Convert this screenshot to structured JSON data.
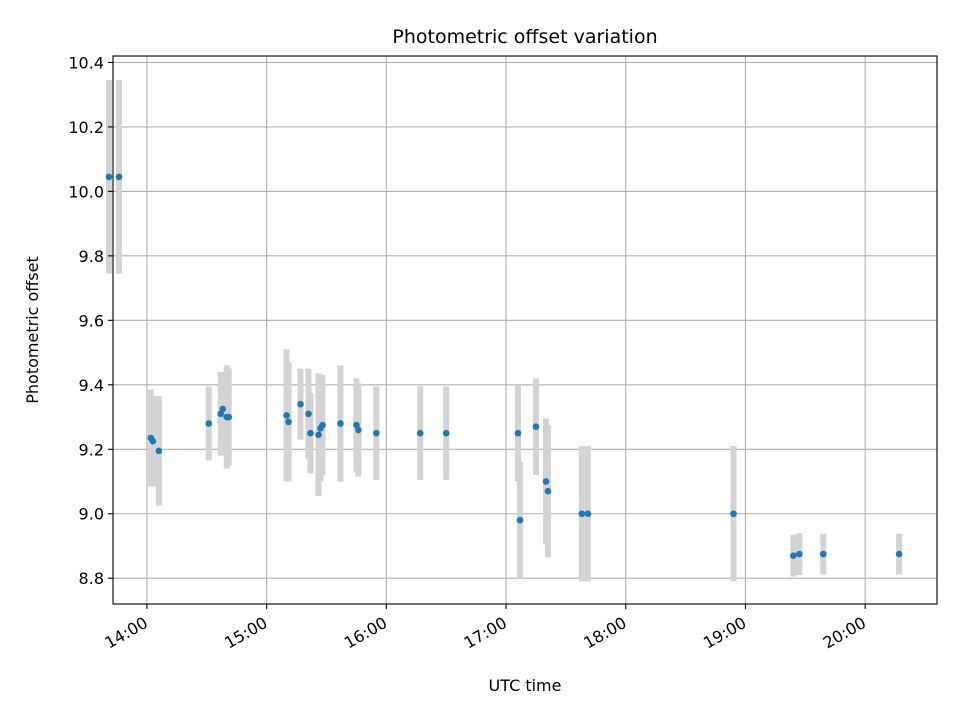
{
  "chart_data": {
    "type": "scatter",
    "title": "Photometric offset variation",
    "xlabel": "UTC time",
    "ylabel": "Photometric offset",
    "x_ticks": [
      "14:00",
      "15:00",
      "16:00",
      "17:00",
      "18:00",
      "19:00",
      "20:00"
    ],
    "y_ticks": [
      "8.8",
      "9.0",
      "9.2",
      "9.4",
      "9.6",
      "9.8",
      "10.0",
      "10.2",
      "10.4"
    ],
    "xlim": [
      "13:43",
      "20:36"
    ],
    "ylim": [
      8.72,
      10.42
    ],
    "grid": true,
    "marker_color": "#1f77b4",
    "errorbar_color": "#d3d3d3",
    "points": [
      {
        "x": "13:41",
        "y": 10.045,
        "err": 0.3
      },
      {
        "x": "13:46",
        "y": 10.045,
        "err": 0.3
      },
      {
        "x": "14:02",
        "y": 9.235,
        "err": 0.15
      },
      {
        "x": "14:03",
        "y": 9.225,
        "err": 0.14
      },
      {
        "x": "14:06",
        "y": 9.195,
        "err": 0.17
      },
      {
        "x": "14:31",
        "y": 9.28,
        "err": 0.115
      },
      {
        "x": "14:37",
        "y": 9.31,
        "err": 0.13
      },
      {
        "x": "14:38",
        "y": 9.325,
        "err": 0.115
      },
      {
        "x": "14:40",
        "y": 9.3,
        "err": 0.16
      },
      {
        "x": "14:41",
        "y": 9.3,
        "err": 0.15
      },
      {
        "x": "15:10",
        "y": 9.305,
        "err": 0.205
      },
      {
        "x": "15:11",
        "y": 9.285,
        "err": 0.185
      },
      {
        "x": "15:17",
        "y": 9.34,
        "err": 0.11
      },
      {
        "x": "15:21",
        "y": 9.31,
        "err": 0.14
      },
      {
        "x": "15:22",
        "y": 9.25,
        "err": 0.125
      },
      {
        "x": "15:26",
        "y": 9.245,
        "err": 0.19
      },
      {
        "x": "15:27",
        "y": 9.265,
        "err": 0.165
      },
      {
        "x": "15:28",
        "y": 9.275,
        "err": 0.155
      },
      {
        "x": "15:37",
        "y": 9.28,
        "err": 0.18
      },
      {
        "x": "15:45",
        "y": 9.275,
        "err": 0.145
      },
      {
        "x": "15:46",
        "y": 9.26,
        "err": 0.145
      },
      {
        "x": "15:55",
        "y": 9.25,
        "err": 0.145
      },
      {
        "x": "16:17",
        "y": 9.25,
        "err": 0.145
      },
      {
        "x": "16:30",
        "y": 9.25,
        "err": 0.145
      },
      {
        "x": "17:06",
        "y": 9.25,
        "err": 0.15
      },
      {
        "x": "17:07",
        "y": 8.98,
        "err": 0.18
      },
      {
        "x": "17:15",
        "y": 9.27,
        "err": 0.15
      },
      {
        "x": "17:20",
        "y": 9.1,
        "err": 0.195
      },
      {
        "x": "17:21",
        "y": 9.07,
        "err": 0.205
      },
      {
        "x": "17:38",
        "y": 9.0,
        "err": 0.21
      },
      {
        "x": "17:41",
        "y": 9.0,
        "err": 0.21
      },
      {
        "x": "18:54",
        "y": 9.0,
        "err": 0.21
      },
      {
        "x": "19:24",
        "y": 8.87,
        "err": 0.065
      },
      {
        "x": "19:27",
        "y": 8.875,
        "err": 0.065
      },
      {
        "x": "19:39",
        "y": 8.875,
        "err": 0.063
      },
      {
        "x": "20:17",
        "y": 8.875,
        "err": 0.063
      }
    ]
  }
}
